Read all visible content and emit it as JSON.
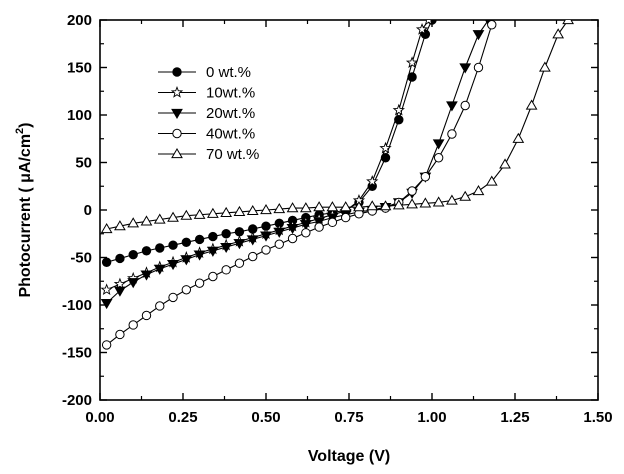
{
  "chart_data": {
    "type": "line",
    "xlabel": "Voltage (V)",
    "ylabel_main": "Photocurrent (  μA/cm",
    "ylabel_sup": "2",
    "ylabel_end": ")",
    "xlim": [
      0,
      1.5
    ],
    "ylim": [
      -200,
      200
    ],
    "xticks": [
      "0.00",
      "0.25",
      "0.50",
      "0.75",
      "1.00",
      "1.25",
      "1.50"
    ],
    "yticks": [
      "-200",
      "-150",
      "-100",
      "-50",
      "0",
      "50",
      "100",
      "150",
      "200"
    ],
    "grid": false,
    "legend_position": "upper-left",
    "series": [
      {
        "name": "0 wt.%",
        "marker": "filled-circle",
        "x": [
          0.02,
          0.06,
          0.1,
          0.14,
          0.18,
          0.22,
          0.26,
          0.3,
          0.34,
          0.38,
          0.42,
          0.46,
          0.5,
          0.54,
          0.58,
          0.62,
          0.66,
          0.7,
          0.74,
          0.78,
          0.82,
          0.86,
          0.9,
          0.94,
          0.98,
          1.0
        ],
        "y": [
          -55,
          -51,
          -47,
          -43,
          -40,
          -37,
          -34,
          -31,
          -28,
          -25,
          -23,
          -20,
          -17,
          -14,
          -11,
          -8,
          -5,
          -3,
          0,
          8,
          25,
          55,
          95,
          140,
          185,
          200
        ]
      },
      {
        "name": "10wt.%",
        "marker": "open-star",
        "x": [
          0.02,
          0.06,
          0.1,
          0.14,
          0.18,
          0.22,
          0.26,
          0.3,
          0.34,
          0.38,
          0.42,
          0.46,
          0.5,
          0.54,
          0.58,
          0.62,
          0.66,
          0.7,
          0.74,
          0.78,
          0.82,
          0.86,
          0.9,
          0.94,
          0.97,
          0.99
        ],
        "y": [
          -84,
          -78,
          -72,
          -66,
          -60,
          -55,
          -50,
          -45,
          -41,
          -37,
          -33,
          -29,
          -25,
          -21,
          -17,
          -13,
          -9,
          -5,
          -1,
          10,
          30,
          65,
          105,
          155,
          190,
          200
        ]
      },
      {
        "name": "20wt.%",
        "marker": "filled-triangle-down",
        "x": [
          0.02,
          0.06,
          0.1,
          0.14,
          0.18,
          0.22,
          0.26,
          0.3,
          0.34,
          0.38,
          0.42,
          0.46,
          0.5,
          0.54,
          0.58,
          0.62,
          0.66,
          0.7,
          0.74,
          0.78,
          0.82,
          0.86,
          0.9,
          0.94,
          0.98,
          1.02,
          1.06,
          1.1,
          1.14,
          1.17
        ],
        "y": [
          -98,
          -85,
          -76,
          -68,
          -62,
          -57,
          -52,
          -47,
          -43,
          -39,
          -35,
          -31,
          -27,
          -23,
          -19,
          -15,
          -12,
          -8,
          -5,
          -2,
          0,
          3,
          8,
          18,
          35,
          70,
          110,
          150,
          185,
          200
        ]
      },
      {
        "name": "40wt.%",
        "marker": "open-circle",
        "x": [
          0.02,
          0.06,
          0.1,
          0.14,
          0.18,
          0.22,
          0.26,
          0.3,
          0.34,
          0.38,
          0.42,
          0.46,
          0.5,
          0.54,
          0.58,
          0.62,
          0.66,
          0.7,
          0.74,
          0.78,
          0.82,
          0.86,
          0.9,
          0.94,
          0.98,
          1.02,
          1.06,
          1.1,
          1.14,
          1.18
        ],
        "y": [
          -142,
          -131,
          -121,
          -111,
          -101,
          -92,
          -84,
          -77,
          -70,
          -63,
          -56,
          -49,
          -42,
          -36,
          -30,
          -24,
          -18,
          -13,
          -8,
          -4,
          -1,
          2,
          8,
          20,
          35,
          55,
          80,
          110,
          150,
          195
        ]
      },
      {
        "name": "70 wt.%",
        "marker": "open-triangle-up",
        "x": [
          0.02,
          0.06,
          0.1,
          0.14,
          0.18,
          0.22,
          0.26,
          0.3,
          0.34,
          0.38,
          0.42,
          0.46,
          0.5,
          0.54,
          0.58,
          0.62,
          0.66,
          0.7,
          0.74,
          0.78,
          0.82,
          0.86,
          0.9,
          0.94,
          0.98,
          1.02,
          1.06,
          1.1,
          1.14,
          1.18,
          1.22,
          1.26,
          1.3,
          1.34,
          1.38,
          1.41
        ],
        "y": [
          -20,
          -17,
          -14,
          -12,
          -10,
          -8,
          -6,
          -5,
          -4,
          -3,
          -2,
          -1,
          0,
          1,
          2,
          2,
          3,
          3,
          3,
          3,
          4,
          4,
          5,
          6,
          7,
          8,
          10,
          14,
          20,
          30,
          48,
          75,
          110,
          150,
          185,
          200
        ]
      }
    ]
  }
}
